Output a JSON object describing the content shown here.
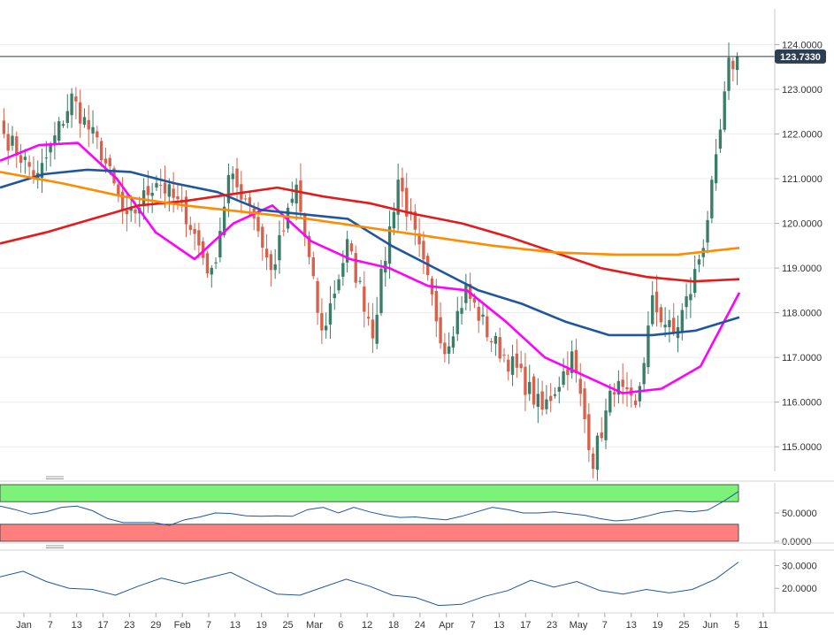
{
  "chart_data": [
    {
      "type": "candlestick",
      "title": "",
      "x_tick_labels": [
        "Jan",
        "7",
        "13",
        "17",
        "23",
        "29",
        "Feb",
        "7",
        "13",
        "19",
        "25",
        "Mar",
        "6",
        "12",
        "18",
        "24",
        "Apr",
        "7",
        "13",
        "17",
        "23",
        "May",
        "7",
        "13",
        "19",
        "25",
        "Jun",
        "5",
        "11"
      ],
      "y_tick_labels": [
        "124.0000",
        "123.0000",
        "122.0000",
        "121.0000",
        "120.0000",
        "119.0000",
        "118.0000",
        "117.0000",
        "116.0000",
        "115.0000"
      ],
      "ylim": [
        114.45,
        124.8
      ],
      "last_price": 123.733,
      "last_price_label": "123.7330",
      "candle_colors": {
        "up": "#3a7d68",
        "down": "#d9614c"
      },
      "anchors": [
        [
          0,
          122.0
        ],
        [
          8,
          121.0
        ],
        [
          16,
          122.8
        ],
        [
          23,
          121.6
        ],
        [
          29,
          120.0
        ],
        [
          36,
          121.0
        ],
        [
          43,
          120.2
        ],
        [
          49,
          118.8
        ],
        [
          53,
          121.0
        ],
        [
          58,
          120.5
        ],
        [
          63,
          118.9
        ],
        [
          69,
          120.8
        ],
        [
          75,
          117.5
        ],
        [
          81,
          119.5
        ],
        [
          87,
          117.6
        ],
        [
          93,
          121.0
        ],
        [
          99,
          119.0
        ],
        [
          104,
          117.2
        ],
        [
          109,
          118.5
        ],
        [
          115,
          117.4
        ],
        [
          121,
          116.7
        ],
        [
          127,
          115.8
        ],
        [
          134,
          117.0
        ],
        [
          139,
          114.7
        ],
        [
          144,
          116.4
        ],
        [
          149,
          115.8
        ],
        [
          153,
          118.2
        ],
        [
          158,
          117.5
        ],
        [
          162,
          118.5
        ],
        [
          165,
          119.6
        ],
        [
          168,
          121.3
        ],
        [
          171,
          123.5
        ],
        [
          173,
          123.7
        ]
      ],
      "series": [
        {
          "name": "",
          "color": "#ff00ff",
          "y": [
            121.4,
            121.75,
            121.8,
            121.0,
            119.8,
            119.2,
            120.0,
            120.4,
            119.6,
            119.2,
            119.0,
            118.6,
            118.5,
            117.8,
            117.0,
            116.6,
            116.2,
            116.3,
            116.8,
            118.45
          ]
        },
        {
          "name": "",
          "color": "#1e56a0",
          "y": [
            120.8,
            121.1,
            121.2,
            121.15,
            120.9,
            120.7,
            120.3,
            120.2,
            120.1,
            119.5,
            119.0,
            118.5,
            118.2,
            117.8,
            117.5,
            117.5,
            117.6,
            117.9
          ]
        },
        {
          "name": "",
          "color": "#e41a1c",
          "y": [
            119.55,
            119.8,
            120.1,
            120.4,
            120.5,
            120.65,
            120.8,
            120.6,
            120.45,
            120.2,
            120.0,
            119.7,
            119.35,
            119.0,
            118.8,
            118.7,
            118.75
          ]
        },
        {
          "name": "",
          "color": "#ff8c00",
          "y": [
            121.15,
            120.9,
            120.6,
            120.4,
            120.25,
            120.1,
            119.9,
            119.7,
            119.5,
            119.35,
            119.3,
            119.3,
            119.45
          ]
        }
      ]
    },
    {
      "type": "line",
      "title": "",
      "y_tick_labels": [
        "50.0000",
        "0.0000"
      ],
      "ylim": [
        0,
        100
      ],
      "zones": [
        {
          "from": 70,
          "to": 100,
          "color": "#7df279"
        },
        {
          "from": 0,
          "to": 30,
          "color": "#ff7f7f"
        }
      ],
      "series": [
        {
          "name": "",
          "color": "#1e56a0",
          "y": [
            62,
            56,
            48,
            52,
            60,
            62,
            54,
            40,
            33,
            33,
            33,
            28,
            38,
            43,
            50,
            49,
            45,
            44,
            45,
            44,
            56,
            60,
            50,
            60,
            52,
            46,
            42,
            43,
            40,
            38,
            44,
            52,
            60,
            56,
            50,
            50,
            52,
            49,
            46,
            40,
            36,
            38,
            44,
            51,
            54,
            52,
            55,
            70,
            88
          ]
        }
      ]
    },
    {
      "type": "line",
      "title": "",
      "y_tick_labels": [
        "30.0000",
        "20.0000"
      ],
      "ylim": [
        10,
        36
      ],
      "series": [
        {
          "name": "",
          "color": "#1e56a0",
          "y": [
            25,
            27.5,
            23,
            20,
            19.5,
            17,
            21,
            24.5,
            22,
            24.5,
            27,
            22,
            17.5,
            17,
            20.5,
            24,
            21,
            17,
            16,
            12.5,
            13,
            16.5,
            19,
            23.5,
            20.5,
            23,
            19,
            17.5,
            19.5,
            18,
            19.5,
            24,
            31.5
          ]
        }
      ]
    }
  ]
}
